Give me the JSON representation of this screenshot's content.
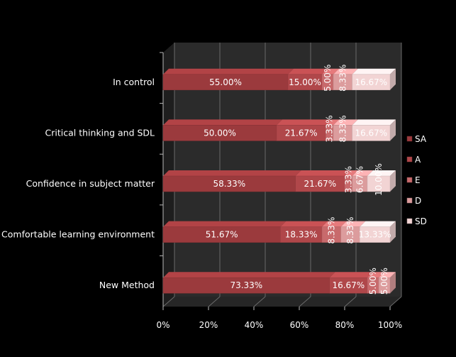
{
  "chart_data": {
    "type": "bar",
    "orientation": "horizontal",
    "stacked": "100%",
    "style": "3d",
    "categories": [
      "New Method",
      "Comfortable learning environment",
      "Confidence in subject matter",
      "Critical thinking and SDL",
      "In control"
    ],
    "series": [
      {
        "name": "SA",
        "values": [
          73.33,
          51.67,
          58.33,
          50.0,
          55.0
        ],
        "labels": [
          "73.33%",
          "51.67%",
          "58.33%",
          "50.00%",
          "55.00%"
        ],
        "color": "#9b3a3d"
      },
      {
        "name": "A",
        "values": [
          16.67,
          18.33,
          21.67,
          21.67,
          15.0
        ],
        "labels": [
          "16.67%",
          "18.33%",
          "21.67%",
          "21.67%",
          "15.00%"
        ],
        "color": "#b0474a"
      },
      {
        "name": "E",
        "values": [
          5.0,
          8.33,
          3.33,
          3.33,
          5.0
        ],
        "labels": [
          "5.00%",
          "8.33%",
          "3.33%",
          "3.33%",
          "5.00%"
        ],
        "color": "#c86a6c"
      },
      {
        "name": "D",
        "values": [
          5.0,
          8.33,
          6.67,
          8.33,
          8.33
        ],
        "labels": [
          "5.00%",
          "8.33%",
          "6.67%",
          "8.33%",
          "8.33%"
        ],
        "color": "#dc9c9d"
      },
      {
        "name": "SD",
        "values": [
          0.0,
          13.33,
          10.0,
          16.67,
          16.67
        ],
        "labels": [
          "",
          "13.33%",
          "10.00%",
          "16.67%",
          "16.67%"
        ],
        "color": "#f2d4d4"
      }
    ],
    "xticks": [
      "0%",
      "20%",
      "40%",
      "60%",
      "80%",
      "100%"
    ],
    "xlim": [
      0,
      100
    ],
    "grid": true,
    "legend": "right",
    "background": "#000000",
    "wall_color": "#2b2b2b",
    "text_color": "#ffffff"
  }
}
